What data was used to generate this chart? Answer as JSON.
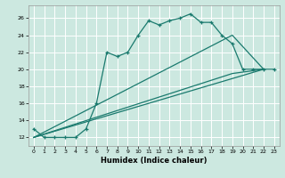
{
  "xlabel": "Humidex (Indice chaleur)",
  "bg_color": "#cce8e0",
  "grid_color": "#ffffff",
  "line_color": "#1a7a6e",
  "xlim": [
    -0.5,
    23.5
  ],
  "ylim": [
    11.0,
    27.5
  ],
  "yticks": [
    12,
    14,
    16,
    18,
    20,
    22,
    24,
    26
  ],
  "xticks": [
    0,
    1,
    2,
    3,
    4,
    5,
    6,
    7,
    8,
    9,
    10,
    11,
    12,
    13,
    14,
    15,
    16,
    17,
    18,
    19,
    20,
    21,
    22,
    23
  ],
  "line1_x": [
    0,
    1,
    2,
    3,
    4,
    5,
    6,
    7,
    8,
    9,
    10,
    11,
    12,
    13,
    14,
    15,
    16,
    17,
    18,
    19,
    20,
    21,
    22,
    23
  ],
  "line1_y": [
    13,
    12,
    12,
    12,
    12,
    13,
    16,
    22,
    21.5,
    22,
    24,
    25.7,
    25.2,
    25.7,
    26.0,
    26.5,
    25.5,
    25.5,
    24,
    23,
    20,
    20,
    20,
    20
  ],
  "line2_x": [
    0,
    22
  ],
  "line2_y": [
    12,
    20
  ],
  "line3_x": [
    0,
    19,
    22
  ],
  "line3_y": [
    12,
    19.5,
    20
  ],
  "line4_x": [
    0,
    19,
    22
  ],
  "line4_y": [
    12,
    24,
    20
  ]
}
